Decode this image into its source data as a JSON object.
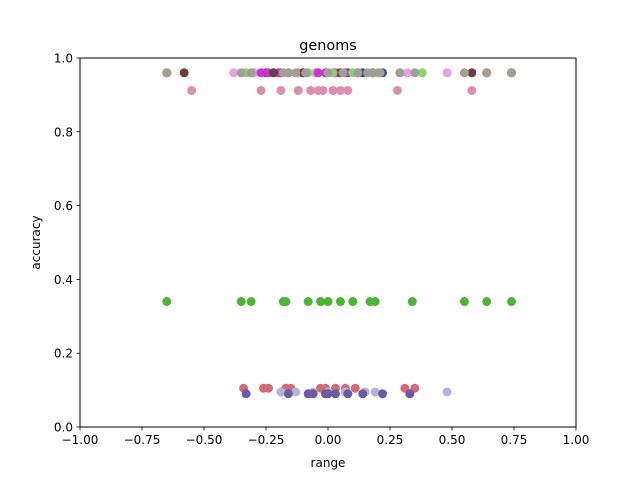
{
  "chart_data": {
    "type": "scatter",
    "title": "genoms",
    "xlabel": "range",
    "ylabel": "accuracy",
    "xlim": [
      -1.0,
      1.0
    ],
    "ylim": [
      0.0,
      1.0
    ],
    "xticks": [
      "−1.00",
      "−0.75",
      "−0.50",
      "−0.25",
      "0.00",
      "0.25",
      "0.50",
      "0.75",
      "1.00"
    ],
    "xtick_values": [
      -1.0,
      -0.75,
      -0.5,
      -0.25,
      0.0,
      0.25,
      0.5,
      0.75,
      1.0
    ],
    "yticks": [
      "0.0",
      "0.2",
      "0.4",
      "0.6",
      "0.8",
      "1.0"
    ],
    "ytick_values": [
      0.0,
      0.2,
      0.4,
      0.6,
      0.8,
      1.0
    ],
    "grid": false,
    "legend": false,
    "series": [
      {
        "color": "#3f4ea1",
        "y": 0.96,
        "x": [
          -0.3,
          -0.25,
          -0.19,
          -0.12,
          -0.05,
          0.02,
          0.08,
          0.14,
          0.22
        ]
      },
      {
        "color": "#e6a0e8",
        "y": 0.96,
        "x": [
          -0.38,
          -0.3,
          -0.22,
          -0.12,
          -0.05,
          0.04,
          0.12,
          0.2,
          0.32,
          0.48
        ]
      },
      {
        "color": "#cc33cc",
        "y": 0.96,
        "x": [
          -0.27,
          -0.24,
          -0.2,
          -0.16,
          -0.1,
          -0.04,
          -0.01,
          0.03,
          0.07,
          0.12
        ]
      },
      {
        "color": "#6b3f3f",
        "y": 0.96,
        "x": [
          -0.65,
          -0.58,
          -0.22,
          -0.1,
          0.05,
          0.18,
          0.58,
          0.64,
          0.74
        ]
      },
      {
        "color": "#8ed26a",
        "y": 0.96,
        "x": [
          -0.33,
          -0.18,
          -0.08,
          0.02,
          0.1,
          0.2,
          0.29,
          0.38
        ]
      },
      {
        "color": "#a19f96",
        "y": 0.96,
        "x": [
          -0.65,
          -0.35,
          -0.31,
          -0.18,
          -0.16,
          -0.13,
          -0.09,
          0.0,
          0.06,
          0.12,
          0.16,
          0.18,
          0.21,
          0.29,
          0.35,
          0.55,
          0.64,
          0.74
        ]
      },
      {
        "color": "#df8eb2",
        "y": 0.912,
        "x": [
          -0.55,
          -0.27,
          -0.19,
          -0.12,
          -0.07,
          -0.04,
          -0.02,
          0.02,
          0.05,
          0.08,
          0.28,
          0.58
        ]
      },
      {
        "color": "#4db535",
        "y": 0.34,
        "x": [
          -0.65,
          -0.35,
          -0.31,
          -0.18,
          -0.17,
          -0.08,
          -0.03,
          0.0,
          0.05,
          0.1,
          0.17,
          0.19,
          0.34,
          0.55,
          0.64,
          0.74
        ]
      },
      {
        "color": "#d66a72",
        "y": 0.105,
        "x": [
          -0.34,
          -0.26,
          -0.24,
          -0.17,
          -0.15,
          -0.03,
          -0.01,
          0.03,
          0.07,
          0.11,
          0.31,
          0.35
        ]
      },
      {
        "color": "#b6b2db",
        "y": 0.095,
        "x": [
          -0.19,
          -0.13,
          -0.06,
          0.0,
          0.07,
          0.15,
          0.19,
          0.48
        ]
      },
      {
        "color": "#6a5ba2",
        "y": 0.09,
        "x": [
          -0.33,
          -0.16,
          -0.08,
          -0.06,
          -0.01,
          0.0,
          0.03,
          0.08,
          0.14,
          0.22,
          0.33
        ]
      }
    ]
  }
}
